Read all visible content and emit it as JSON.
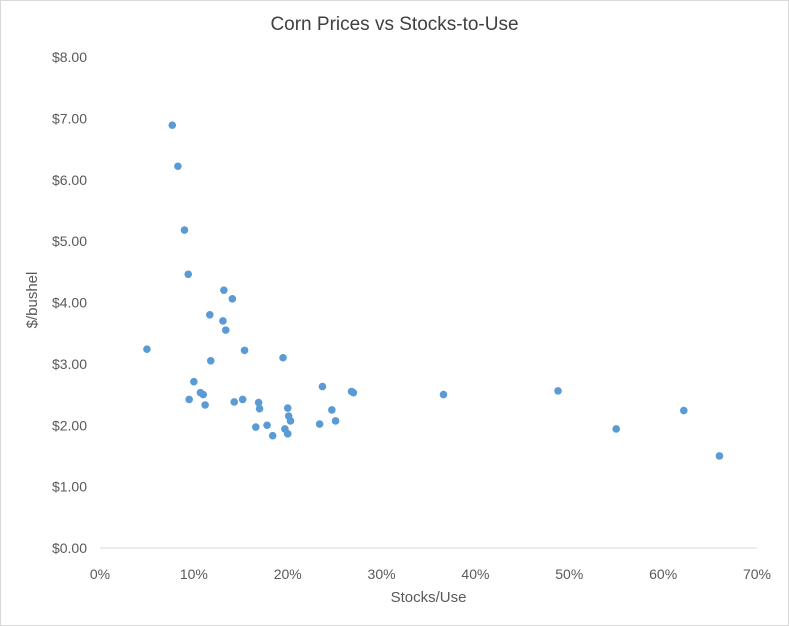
{
  "chart_data": {
    "type": "scatter",
    "title": "Corn Prices vs Stocks-to-Use",
    "xlabel": "Stocks/Use",
    "ylabel": "$/bushel",
    "xlim": [
      0,
      0.7
    ],
    "ylim": [
      0,
      8
    ],
    "x_ticks": [
      0,
      0.1,
      0.2,
      0.3,
      0.4,
      0.5,
      0.6,
      0.7
    ],
    "x_tick_labels": [
      "0%",
      "10%",
      "20%",
      "30%",
      "40%",
      "50%",
      "60%",
      "70%"
    ],
    "y_ticks": [
      0,
      1,
      2,
      3,
      4,
      5,
      6,
      7,
      8
    ],
    "y_tick_labels": [
      "$0.00",
      "$1.00",
      "$2.00",
      "$3.00",
      "$4.00",
      "$5.00",
      "$6.00",
      "$7.00",
      "$8.00"
    ],
    "grid": false,
    "marker_color": "#5b9bd5",
    "points": [
      [
        0.05,
        3.24
      ],
      [
        0.077,
        6.89
      ],
      [
        0.083,
        6.22
      ],
      [
        0.09,
        5.18
      ],
      [
        0.094,
        4.46
      ],
      [
        0.095,
        2.42
      ],
      [
        0.1,
        2.71
      ],
      [
        0.107,
        2.53
      ],
      [
        0.11,
        2.5
      ],
      [
        0.112,
        2.33
      ],
      [
        0.117,
        3.8
      ],
      [
        0.118,
        3.05
      ],
      [
        0.131,
        3.7
      ],
      [
        0.132,
        4.2
      ],
      [
        0.134,
        3.55
      ],
      [
        0.143,
        2.38
      ],
      [
        0.141,
        4.06
      ],
      [
        0.152,
        2.42
      ],
      [
        0.154,
        3.22
      ],
      [
        0.169,
        2.37
      ],
      [
        0.17,
        2.27
      ],
      [
        0.166,
        1.97
      ],
      [
        0.178,
        2.0
      ],
      [
        0.184,
        1.83
      ],
      [
        0.195,
        3.1
      ],
      [
        0.197,
        1.94
      ],
      [
        0.2,
        1.86
      ],
      [
        0.2,
        2.28
      ],
      [
        0.201,
        2.15
      ],
      [
        0.203,
        2.07
      ],
      [
        0.234,
        2.02
      ],
      [
        0.237,
        2.63
      ],
      [
        0.247,
        2.25
      ],
      [
        0.251,
        2.07
      ],
      [
        0.268,
        2.55
      ],
      [
        0.27,
        2.53
      ],
      [
        0.366,
        2.5
      ],
      [
        0.488,
        2.56
      ],
      [
        0.55,
        1.94
      ],
      [
        0.622,
        2.24
      ],
      [
        0.66,
        1.5
      ]
    ]
  }
}
